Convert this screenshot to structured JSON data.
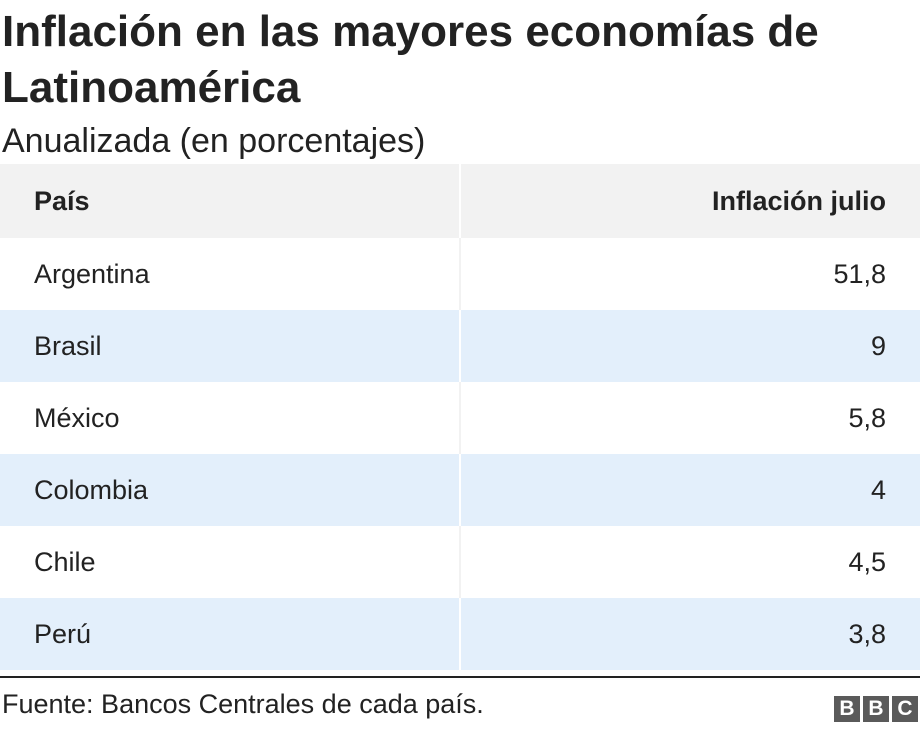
{
  "header": {
    "title": "Inflación en las mayores economías de Latinoamérica",
    "subtitle": "Anualizada (en porcentajes)"
  },
  "chart_data": {
    "type": "table",
    "title": "Inflación en las mayores economías de Latinoamérica",
    "subtitle": "Anualizada (en porcentajes)",
    "columns": [
      "País",
      "Inflación julio"
    ],
    "rows": [
      {
        "country": "Argentina",
        "value": "51,8"
      },
      {
        "country": "Brasil",
        "value": "9"
      },
      {
        "country": "México",
        "value": "5,8"
      },
      {
        "country": "Colombia",
        "value": "4"
      },
      {
        "country": "Chile",
        "value": "4,5"
      },
      {
        "country": "Perú",
        "value": "3,8"
      }
    ],
    "values": [
      51.8,
      9,
      5.8,
      4,
      4.5,
      3.8
    ]
  },
  "footer": {
    "source": "Fuente: Bancos Centrales de cada país.",
    "logo_letters": [
      "B",
      "B",
      "C"
    ]
  },
  "colors": {
    "header_bg": "#f2f2f2",
    "stripe_bg": "#e3effb",
    "text": "#222222",
    "logo_bg": "#5a5a5a"
  }
}
